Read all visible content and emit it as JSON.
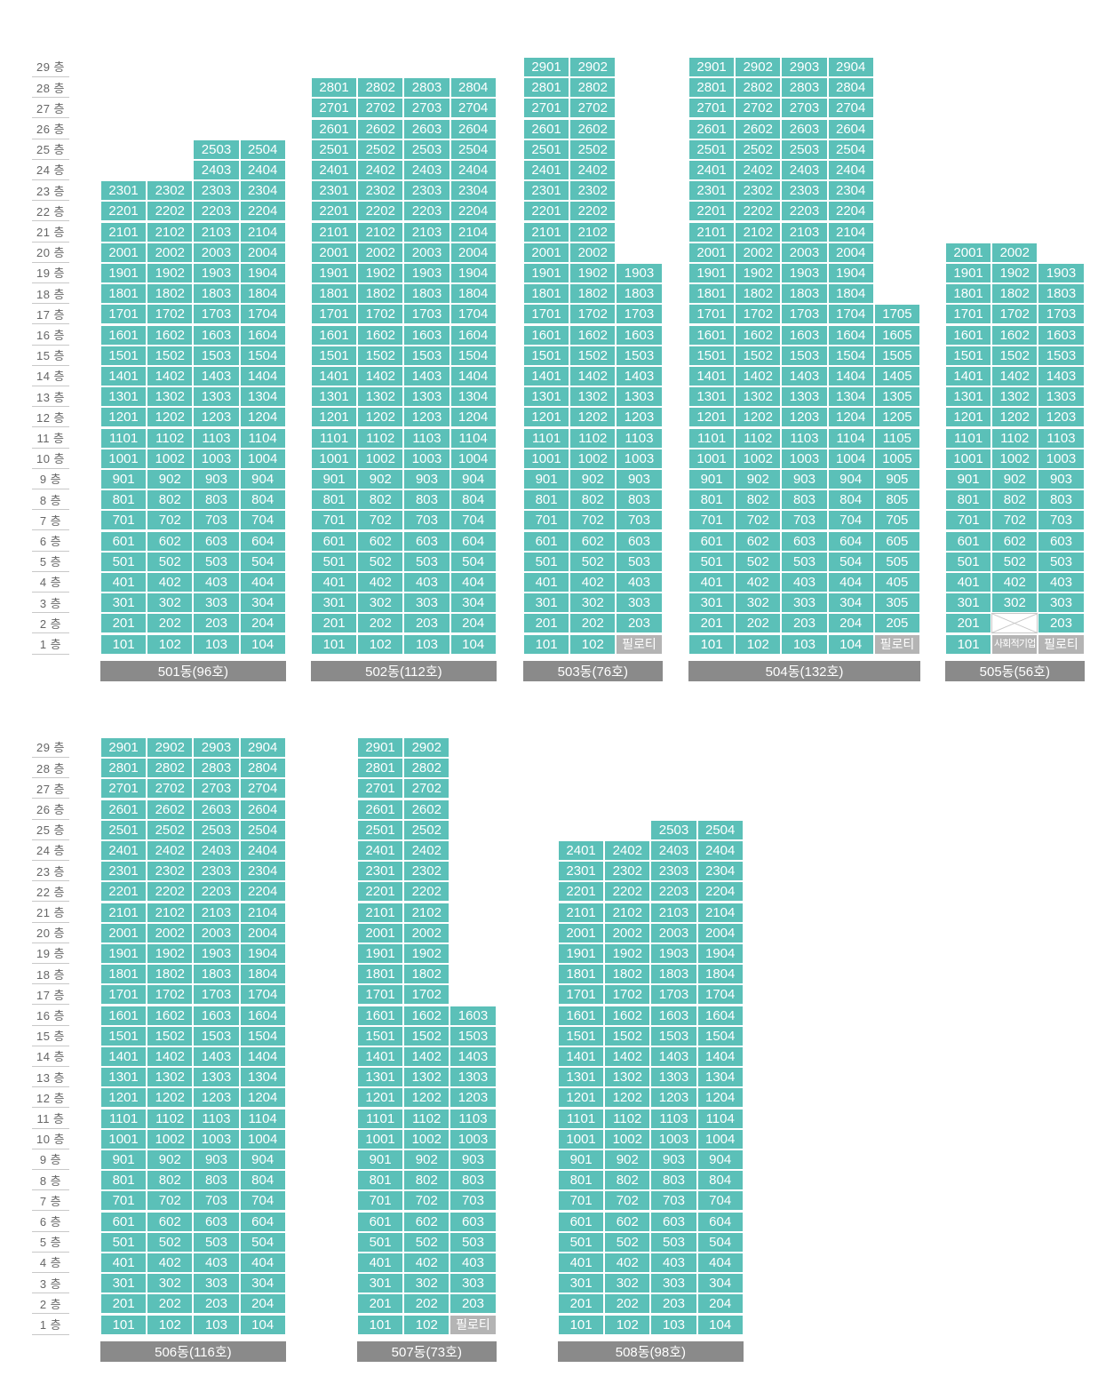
{
  "floor_suffix": "층",
  "floors_max": 29,
  "colors": {
    "unit": "#5bc0b8",
    "special": "#b4b4b4",
    "label_bar": "#8a8a8a",
    "floor_text": "#666666"
  },
  "buildings": [
    {
      "id": "501",
      "label": "501동(96호)",
      "floors": [
        23,
        23,
        25,
        25
      ],
      "overrides": []
    },
    {
      "id": "502",
      "label": "502동(112호)",
      "floors": [
        28,
        28,
        28,
        28
      ],
      "overrides": []
    },
    {
      "id": "503",
      "label": "503동(76호)",
      "floors": [
        29,
        29,
        19
      ],
      "overrides": [
        {
          "floor": 1,
          "line": 3,
          "type": "piloti",
          "text": "필로티"
        }
      ]
    },
    {
      "id": "504",
      "label": "504동(132호)",
      "floors": [
        29,
        29,
        29,
        29,
        17
      ],
      "overrides": [
        {
          "floor": 1,
          "line": 5,
          "type": "piloti",
          "text": "필로티"
        }
      ]
    },
    {
      "id": "505",
      "label": "505동(56호)",
      "floors": [
        20,
        20,
        19
      ],
      "overrides": [
        {
          "floor": 1,
          "line": 2,
          "type": "social",
          "text": "사회적기업"
        },
        {
          "floor": 2,
          "line": 2,
          "type": "blank",
          "text": ""
        },
        {
          "floor": 1,
          "line": 3,
          "type": "piloti",
          "text": "필로티"
        }
      ]
    },
    {
      "id": "506",
      "label": "506동(116호)",
      "floors": [
        29,
        29,
        29,
        29
      ],
      "overrides": []
    },
    {
      "id": "507",
      "label": "507동(73호)",
      "floors": [
        29,
        29,
        16
      ],
      "overrides": [
        {
          "floor": 1,
          "line": 3,
          "type": "piloti",
          "text": "필로티"
        }
      ]
    },
    {
      "id": "508",
      "label": "508동(98호)",
      "floors": [
        24,
        24,
        25,
        25
      ],
      "overrides": []
    }
  ]
}
